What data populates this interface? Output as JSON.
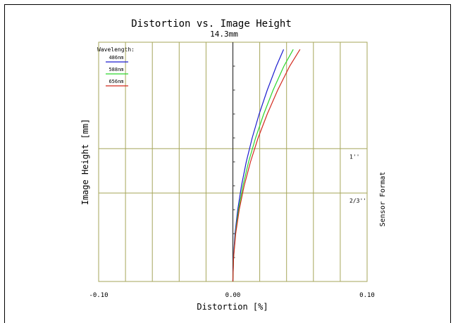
{
  "chart_data": {
    "type": "line",
    "title": "Distortion vs. Image Height",
    "subtitle": "14.3mm",
    "xlabel": "Distortion [%]",
    "ylabel": "Image Height [mm]",
    "right_label": "Sensor Format",
    "xlim": [
      -0.1,
      0.1
    ],
    "ylim": [
      0,
      1
    ],
    "x_tick_labels": [
      "-0.10",
      "0.00",
      "0.10"
    ],
    "x_ticks": [
      -0.1,
      0.0,
      0.1
    ],
    "x_grid": [
      -0.08,
      -0.06,
      -0.04,
      -0.02,
      0.02,
      0.04,
      0.06,
      0.08
    ],
    "y_minor_ticks": [
      0.1,
      0.2,
      0.3,
      0.4,
      0.5,
      0.6,
      0.7,
      0.8,
      0.9
    ],
    "grid": true,
    "grid_color": "#a6a65a",
    "legend": {
      "title": "Wavelength:",
      "placement": "top-left"
    },
    "sensor_formats": [
      {
        "label": "1''",
        "y": 0.555
      },
      {
        "label": "2/3''",
        "y": 0.37
      }
    ],
    "series": [
      {
        "name": "486nm",
        "color": "#1c1ccf",
        "x": [
          0.0,
          0.0004,
          0.0016,
          0.0036,
          0.0064,
          0.01,
          0.0144,
          0.0196,
          0.0256,
          0.0324,
          0.0378
        ],
        "y": [
          0.0,
          0.1,
          0.2,
          0.3,
          0.4,
          0.5,
          0.6,
          0.7,
          0.8,
          0.9,
          0.97
        ]
      },
      {
        "name": "588nm",
        "color": "#2cd62c",
        "x": [
          0.0,
          0.0005,
          0.0019,
          0.0042,
          0.0075,
          0.0117,
          0.0169,
          0.023,
          0.03,
          0.038,
          0.045
        ],
        "y": [
          0.0,
          0.1,
          0.2,
          0.3,
          0.4,
          0.5,
          0.6,
          0.7,
          0.8,
          0.9,
          0.97
        ]
      },
      {
        "name": "656nm",
        "color": "#d22a1e",
        "x": [
          0.0,
          0.0005,
          0.0021,
          0.0047,
          0.0084,
          0.0131,
          0.0188,
          0.0256,
          0.0334,
          0.0423,
          0.05
        ],
        "y": [
          0.0,
          0.1,
          0.2,
          0.3,
          0.4,
          0.5,
          0.6,
          0.7,
          0.8,
          0.9,
          0.97
        ]
      }
    ]
  }
}
